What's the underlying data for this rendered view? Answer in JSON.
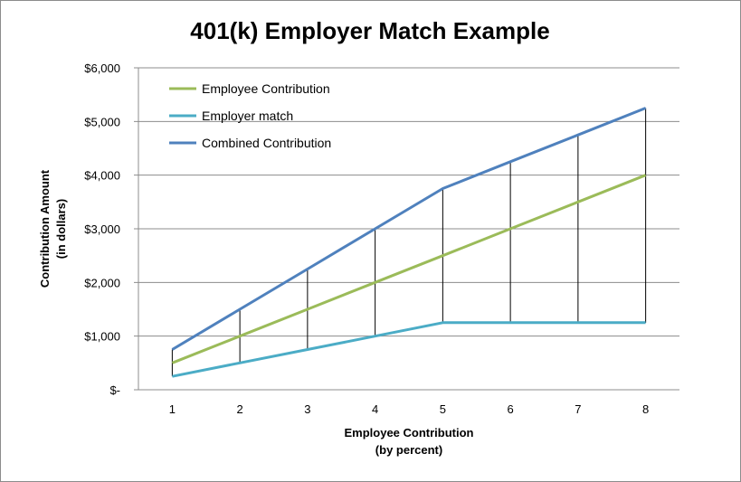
{
  "chart_data": {
    "type": "line",
    "title": "401(k) Employer Match Example",
    "xlabel_lines": [
      "Employee Contribution",
      "(by percent)"
    ],
    "ylabel_lines": [
      "Contribution Amount",
      "(in dollars)"
    ],
    "x": [
      1,
      2,
      3,
      4,
      5,
      6,
      7,
      8
    ],
    "ylim": [
      0,
      6000
    ],
    "yticks": [
      0,
      1000,
      2000,
      3000,
      4000,
      5000,
      6000
    ],
    "ytick_labels": [
      "$-",
      "$1,000",
      "$2,000",
      "$3,000",
      "$4,000",
      "$5,000",
      "$6,000"
    ],
    "grid": "horizontal",
    "legend_position": "top-left",
    "drop_lines": true,
    "series": [
      {
        "name": "Employee Contribution",
        "color": "#9bbb59",
        "values": [
          500,
          1000,
          1500,
          2000,
          2500,
          3000,
          3500,
          4000
        ]
      },
      {
        "name": "Employer match",
        "color": "#4bacc6",
        "values": [
          250,
          500,
          750,
          1000,
          1250,
          1250,
          1250,
          1250
        ]
      },
      {
        "name": "Combined Contribution",
        "color": "#4f81bd",
        "values": [
          750,
          1500,
          2250,
          3000,
          3750,
          4250,
          4750,
          5250
        ]
      }
    ]
  }
}
